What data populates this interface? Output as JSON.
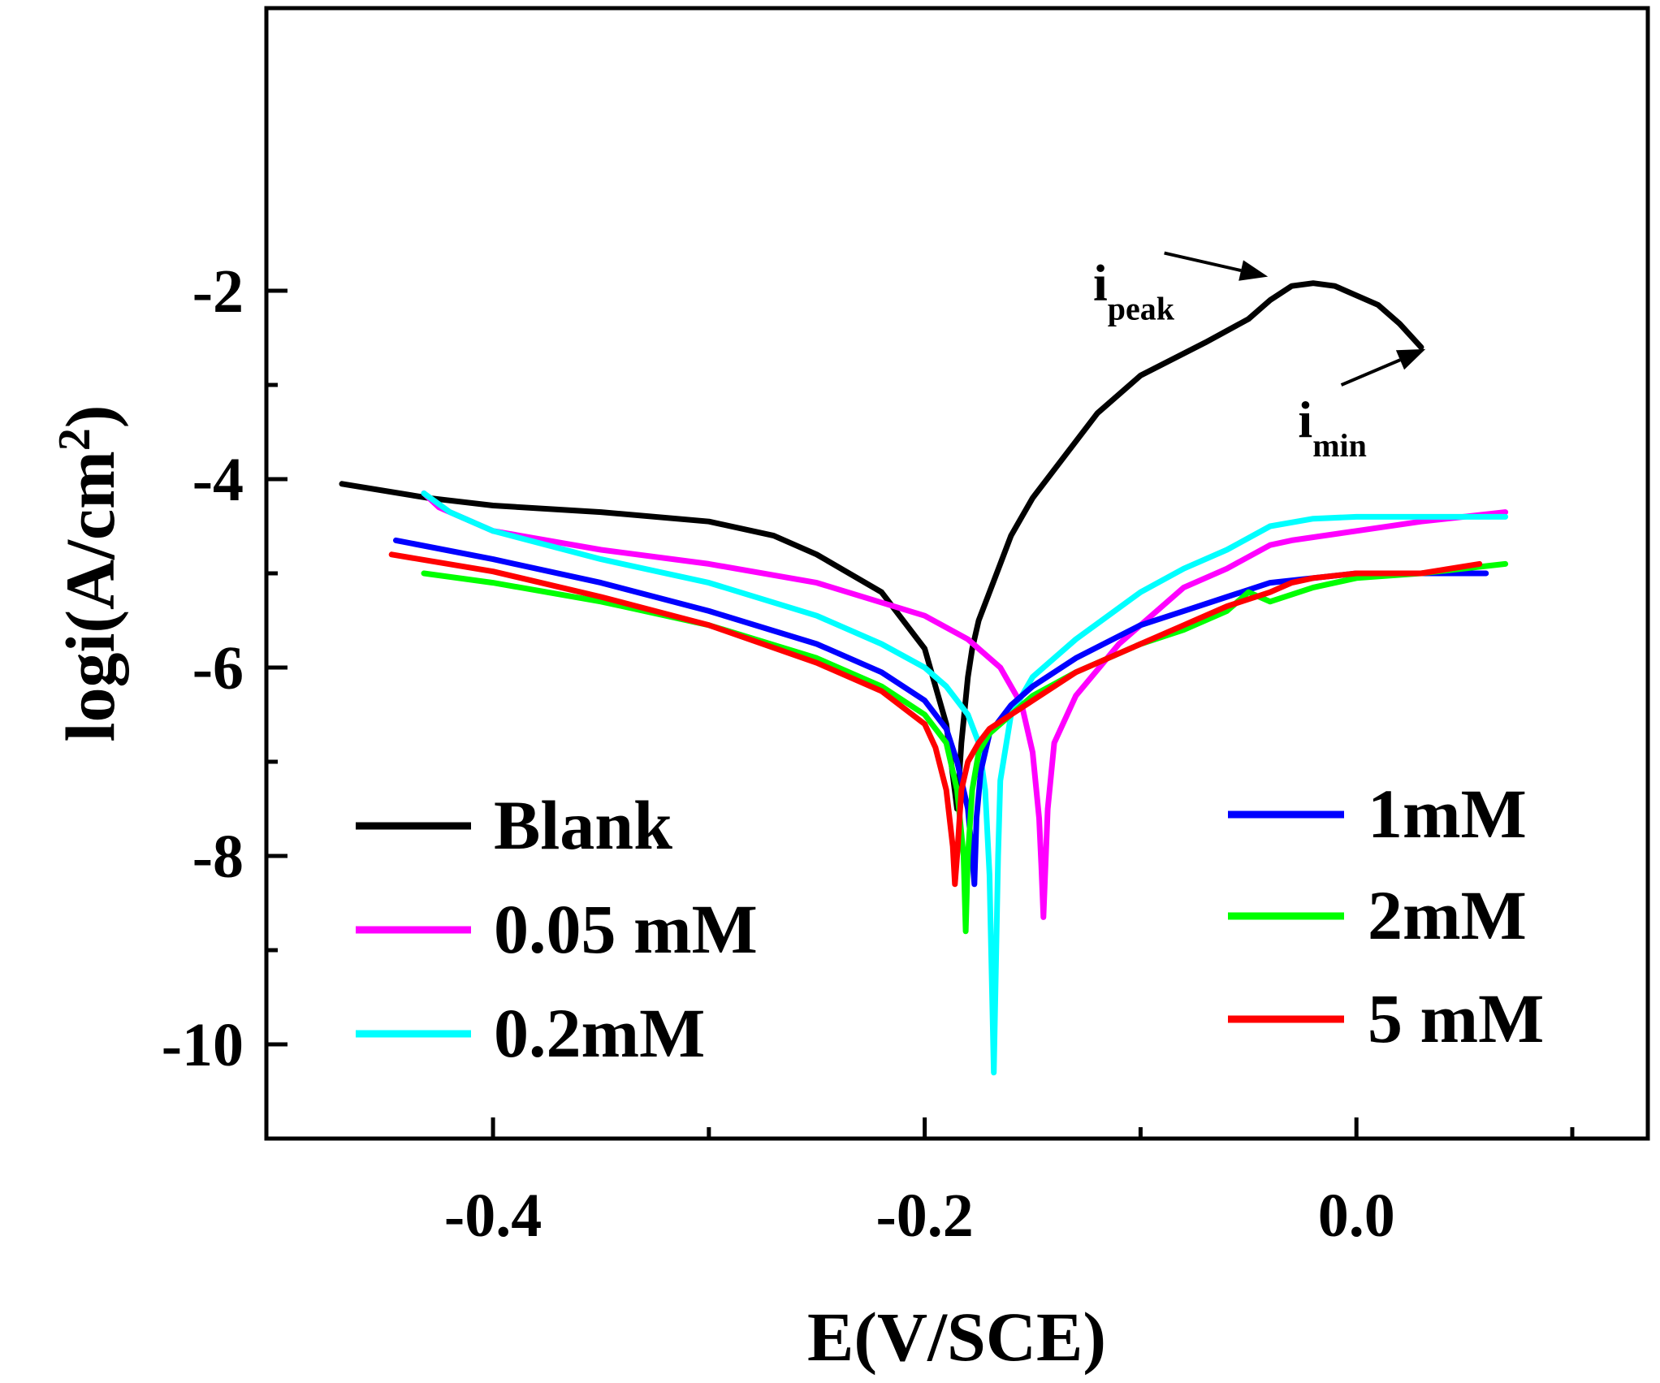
{
  "chart_data": {
    "type": "line",
    "xlabel": "E(V/SCE)",
    "ylabel": {
      "main": "logi(A/cm",
      "sup": "2",
      "close": ")"
    },
    "xlim": [
      -0.505,
      0.135
    ],
    "ylim": [
      -11.0,
      1.0
    ],
    "x_ticks": [
      -0.4,
      -0.2,
      0.0
    ],
    "x_tick_labels": [
      "-0.4",
      "-0.2",
      "0.0"
    ],
    "x_minor_ticks": [
      -0.3,
      -0.1,
      0.1
    ],
    "y_ticks": [
      -2,
      -4,
      -6,
      -8,
      -10
    ],
    "y_tick_labels": [
      "-2",
      "-4",
      "-6",
      "-8",
      "-10"
    ],
    "y_minor_ticks": [
      -3,
      -5,
      -7,
      -9
    ],
    "annotations": [
      {
        "main": "i",
        "sub": "peak",
        "x": -0.122,
        "y": -2.1,
        "arrow_from": [
          -0.089,
          -1.6
        ],
        "arrow_to": [
          -0.041,
          -1.85
        ]
      },
      {
        "main": "i",
        "sub": "min",
        "x": -0.027,
        "y": -3.55,
        "arrow_from": [
          -0.007,
          -3.0
        ],
        "arrow_to": [
          0.032,
          -2.62
        ]
      }
    ],
    "legend_left": [
      "Blank",
      "0.05 mM",
      "0.2mM"
    ],
    "legend_right": [
      "1mM",
      "2mM",
      "5 mM"
    ],
    "series": [
      {
        "name": "Blank",
        "color": "#000000",
        "x": [
          -0.47,
          -0.43,
          -0.4,
          -0.35,
          -0.3,
          -0.27,
          -0.25,
          -0.22,
          -0.2,
          -0.19,
          -0.185,
          -0.183,
          -0.18,
          -0.178,
          -0.175,
          -0.17,
          -0.165,
          -0.16,
          -0.15,
          -0.14,
          -0.12,
          -0.1,
          -0.07,
          -0.05,
          -0.04,
          -0.03,
          -0.02,
          -0.01,
          0.0,
          0.01,
          0.02,
          0.03
        ],
        "y": [
          -4.05,
          -4.2,
          -4.28,
          -4.35,
          -4.45,
          -4.6,
          -4.8,
          -5.2,
          -5.8,
          -6.6,
          -7.5,
          -6.8,
          -6.1,
          -5.8,
          -5.5,
          -5.2,
          -4.9,
          -4.6,
          -4.2,
          -3.9,
          -3.3,
          -2.9,
          -2.55,
          -2.3,
          -2.1,
          -1.95,
          -1.92,
          -1.95,
          -2.05,
          -2.15,
          -2.35,
          -2.6
        ]
      },
      {
        "name": "0.05 mM",
        "color": "#ff00ff",
        "x": [
          -0.432,
          -0.425,
          -0.4,
          -0.35,
          -0.3,
          -0.25,
          -0.2,
          -0.18,
          -0.165,
          -0.155,
          -0.15,
          -0.147,
          -0.146,
          -0.145,
          -0.143,
          -0.14,
          -0.13,
          -0.11,
          -0.08,
          -0.06,
          -0.04,
          -0.03,
          0.0,
          0.03,
          0.069
        ],
        "y": [
          -4.15,
          -4.3,
          -4.55,
          -4.75,
          -4.9,
          -5.1,
          -5.45,
          -5.7,
          -6.0,
          -6.4,
          -6.9,
          -7.6,
          -8.1,
          -8.65,
          -7.5,
          -6.8,
          -6.3,
          -5.75,
          -5.15,
          -4.95,
          -4.7,
          -4.65,
          -4.55,
          -4.45,
          -4.35
        ]
      },
      {
        "name": "0.2mM",
        "color": "#00ffff",
        "x": [
          -0.432,
          -0.42,
          -0.4,
          -0.35,
          -0.3,
          -0.25,
          -0.22,
          -0.2,
          -0.19,
          -0.18,
          -0.175,
          -0.172,
          -0.17,
          -0.168,
          -0.166,
          -0.165,
          -0.16,
          -0.15,
          -0.13,
          -0.1,
          -0.08,
          -0.06,
          -0.04,
          -0.02,
          0.0,
          0.03,
          0.069
        ],
        "y": [
          -4.15,
          -4.35,
          -4.55,
          -4.85,
          -5.1,
          -5.45,
          -5.75,
          -6.0,
          -6.2,
          -6.5,
          -6.8,
          -7.3,
          -8.2,
          -10.3,
          -8.0,
          -7.2,
          -6.5,
          -6.1,
          -5.7,
          -5.2,
          -4.95,
          -4.75,
          -4.5,
          -4.42,
          -4.4,
          -4.4,
          -4.4
        ]
      },
      {
        "name": "1mM",
        "color": "#0000ff",
        "x": [
          -0.445,
          -0.4,
          -0.35,
          -0.3,
          -0.25,
          -0.22,
          -0.2,
          -0.19,
          -0.185,
          -0.18,
          -0.178,
          -0.177,
          -0.176,
          -0.174,
          -0.17,
          -0.16,
          -0.15,
          -0.13,
          -0.1,
          -0.08,
          -0.06,
          -0.04,
          -0.02,
          0.0,
          0.03,
          0.06
        ],
        "y": [
          -4.65,
          -4.85,
          -5.1,
          -5.4,
          -5.75,
          -6.05,
          -6.35,
          -6.65,
          -7.0,
          -7.5,
          -8.0,
          -8.3,
          -7.6,
          -7.1,
          -6.7,
          -6.4,
          -6.2,
          -5.9,
          -5.55,
          -5.4,
          -5.25,
          -5.1,
          -5.05,
          -5.0,
          -5.0,
          -5.0
        ]
      },
      {
        "name": "2mM",
        "color": "#00ff00",
        "x": [
          -0.432,
          -0.4,
          -0.35,
          -0.3,
          -0.25,
          -0.22,
          -0.2,
          -0.19,
          -0.185,
          -0.182,
          -0.181,
          -0.18,
          -0.178,
          -0.175,
          -0.17,
          -0.16,
          -0.15,
          -0.13,
          -0.1,
          -0.08,
          -0.06,
          -0.05,
          -0.04,
          -0.02,
          0.0,
          0.03,
          0.069
        ],
        "y": [
          -5.0,
          -5.1,
          -5.3,
          -5.55,
          -5.9,
          -6.2,
          -6.5,
          -6.8,
          -7.3,
          -8.0,
          -8.8,
          -8.0,
          -7.3,
          -6.9,
          -6.7,
          -6.5,
          -6.3,
          -6.05,
          -5.75,
          -5.6,
          -5.4,
          -5.2,
          -5.3,
          -5.15,
          -5.05,
          -5.0,
          -4.9
        ]
      },
      {
        "name": "5 mM",
        "color": "#ff0000",
        "x": [
          -0.447,
          -0.4,
          -0.35,
          -0.3,
          -0.25,
          -0.22,
          -0.2,
          -0.195,
          -0.19,
          -0.187,
          -0.186,
          -0.185,
          -0.183,
          -0.18,
          -0.175,
          -0.17,
          -0.16,
          -0.15,
          -0.13,
          -0.1,
          -0.08,
          -0.06,
          -0.04,
          -0.03,
          -0.02,
          0.0,
          0.03,
          0.057
        ],
        "y": [
          -4.8,
          -4.98,
          -5.25,
          -5.55,
          -5.95,
          -6.25,
          -6.6,
          -6.85,
          -7.3,
          -7.9,
          -8.3,
          -8.0,
          -7.3,
          -7.0,
          -6.8,
          -6.65,
          -6.5,
          -6.35,
          -6.05,
          -5.75,
          -5.55,
          -5.35,
          -5.2,
          -5.1,
          -5.05,
          -5.0,
          -5.0,
          -4.9
        ]
      }
    ]
  }
}
